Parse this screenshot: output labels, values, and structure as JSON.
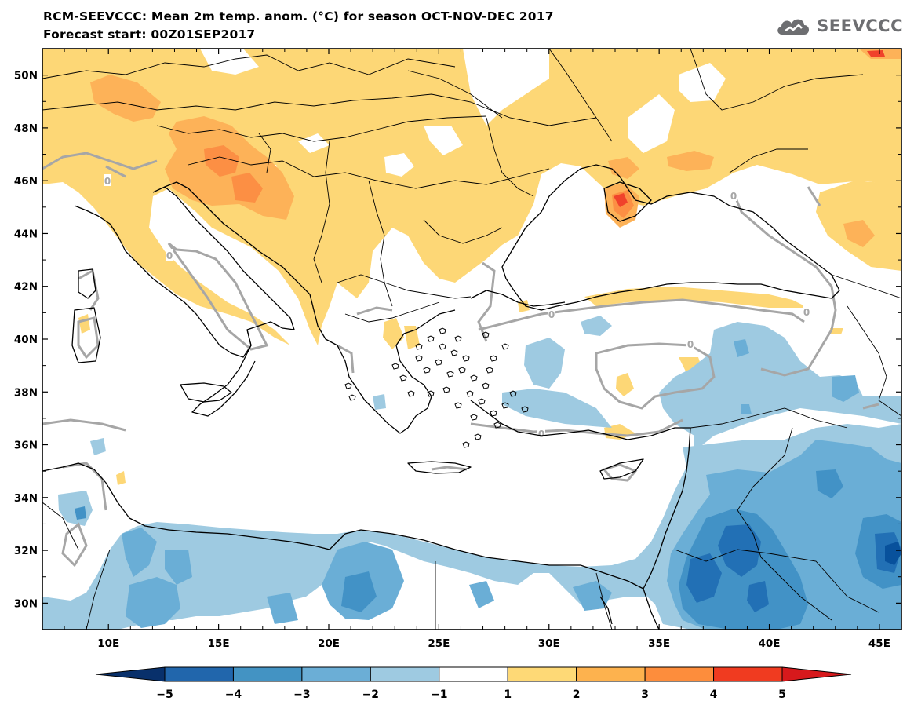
{
  "header": {
    "title": "RCM-SEEVCCC: Mean 2m temp. anom. (°C) for season OCT-NOV-DEC 2017",
    "subtitle": "Forecast start: 00Z01SEP2017",
    "logo_text": "SEEVCCC"
  },
  "map": {
    "lon_range": [
      7,
      46
    ],
    "lat_range": [
      29,
      51
    ],
    "lat_ticks": [
      "50N",
      "48N",
      "46N",
      "44N",
      "42N",
      "40N",
      "38N",
      "36N",
      "34N",
      "32N",
      "30N"
    ],
    "lon_ticks": [
      "10E",
      "15E",
      "20E",
      "25E",
      "30E",
      "35E",
      "40E",
      "45E"
    ],
    "contour_label": "0",
    "contour_color": "#a6a6a6",
    "coast_color": "#000000"
  },
  "colorbar": {
    "labels": [
      "−5",
      "−4",
      "−3",
      "−2",
      "−1",
      "1",
      "2",
      "3",
      "4",
      "5"
    ],
    "colors": [
      "#08306b",
      "#2166ac",
      "#4393c3",
      "#6baed6",
      "#9ecae1",
      "#ffffff",
      "#fed976",
      "#fdb24e",
      "#fd8d3c",
      "#f03b20",
      "#d7191c"
    ]
  },
  "field_colors": {
    "warm1": "#fdd776",
    "warm2": "#fdb258",
    "warm3": "#fc8f44",
    "warm4": "#f0422b",
    "cool1": "#9ecae1",
    "cool2": "#6aaed6",
    "cool3": "#4292c6",
    "cool4": "#2270b5",
    "cool5": "#08519c"
  }
}
